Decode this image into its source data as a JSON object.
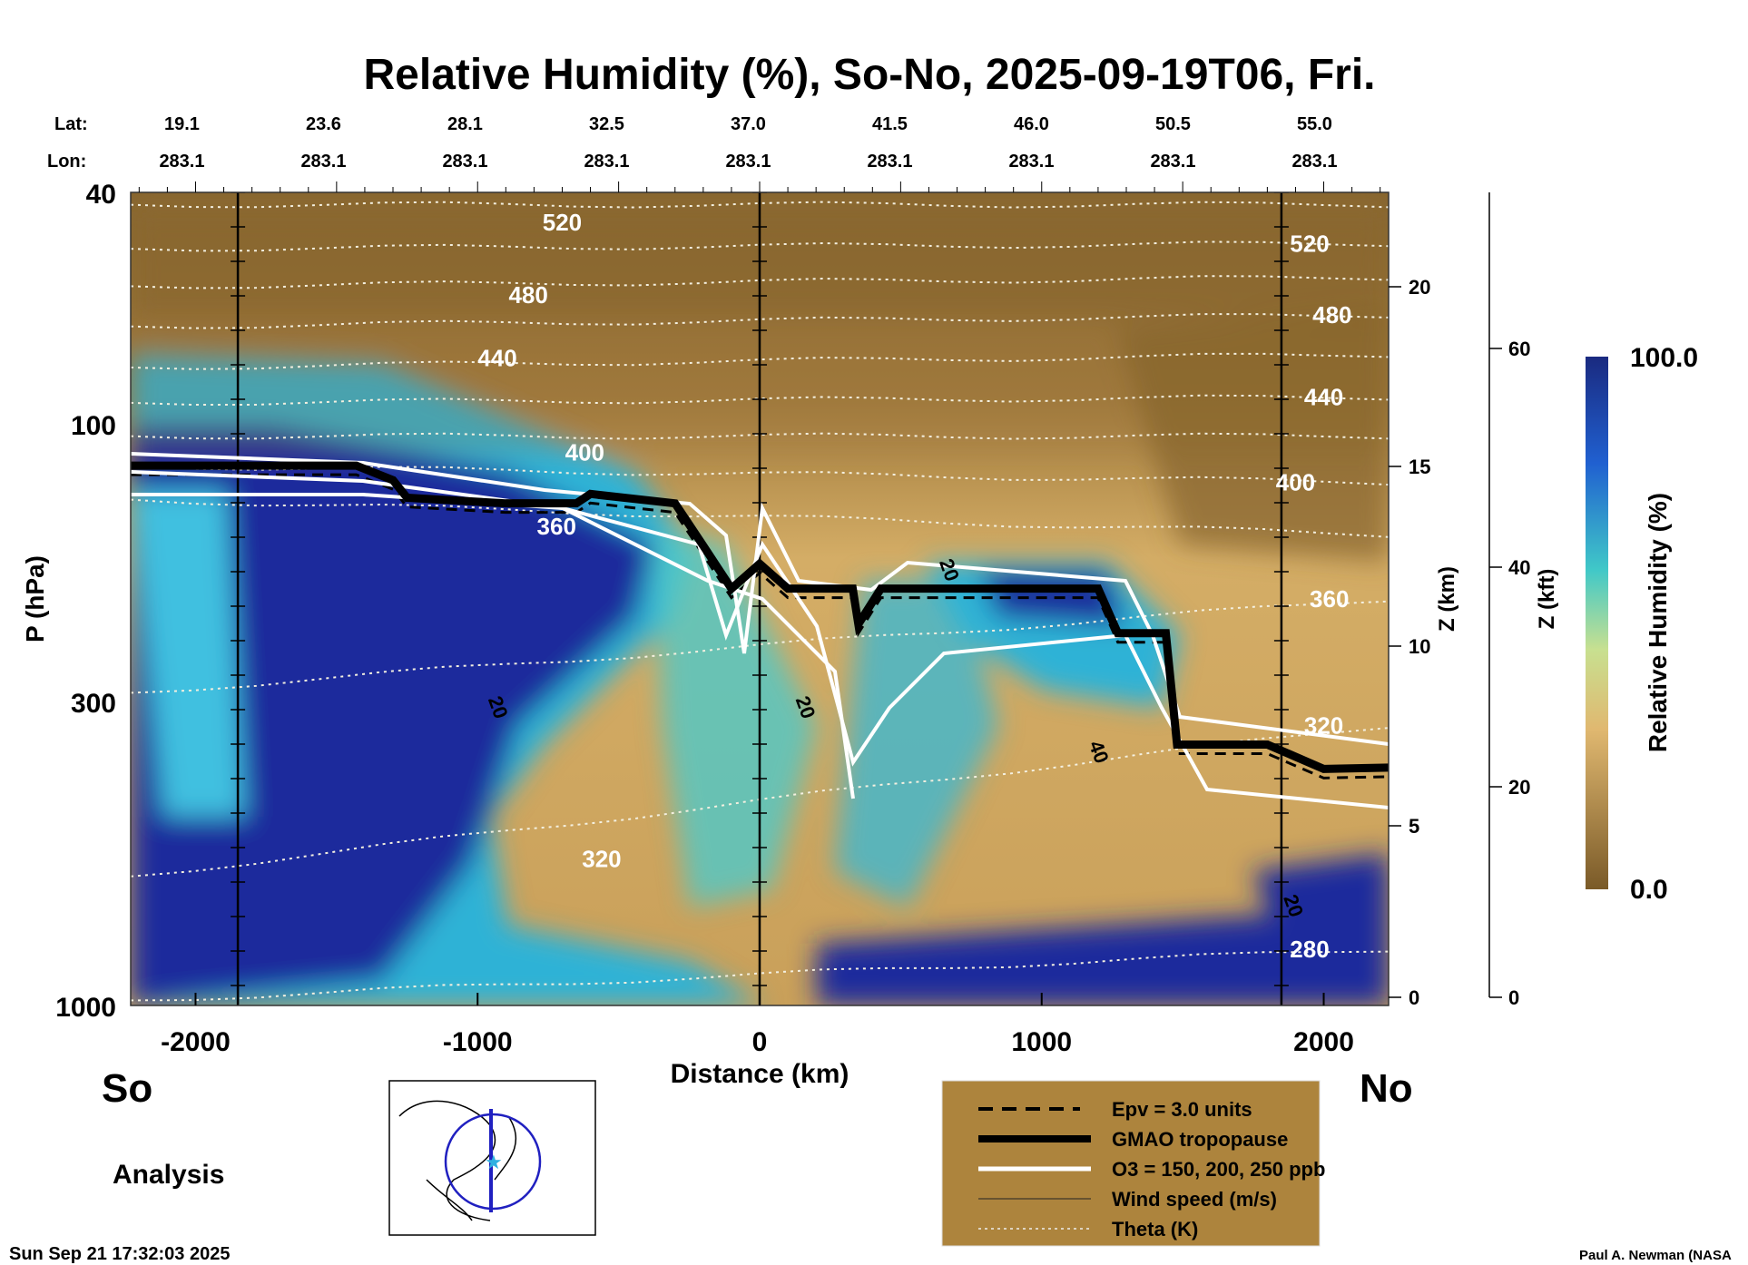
{
  "chart_data": {
    "type": "heatmap",
    "title": "Relative Humidity (%), So-No, 2025-09-19T06, Fri.",
    "xlabel": "Distance (km)",
    "ylabel": "P (hPa)",
    "xlim": [
      -2230,
      2230
    ],
    "ylim": [
      1000,
      40
    ],
    "yscale": "log",
    "x_ticks": [
      -2000,
      -1000,
      0,
      1000,
      2000
    ],
    "x_tick_labels": [
      "-2000",
      "-1000",
      "0",
      "1000",
      "2000"
    ],
    "y_ticks": [
      40,
      100,
      300,
      1000
    ],
    "y_tick_labels": [
      "40",
      "100",
      "300",
      "1000"
    ],
    "lat_label": "Lat:",
    "lon_label": "Lon:",
    "lat_values": [
      "19.1",
      "23.6",
      "28.1",
      "32.5",
      "37.0",
      "41.5",
      "46.0",
      "50.5",
      "55.0"
    ],
    "lon_values": [
      "283.1",
      "283.1",
      "283.1",
      "283.1",
      "283.1",
      "283.1",
      "283.1",
      "283.1",
      "283.1"
    ],
    "z_km_label": "Z (km)",
    "z_km_ticks": [
      "0",
      "5",
      "10",
      "15",
      "20"
    ],
    "z_kft_label": "Z (kft)",
    "z_kft_ticks": [
      "0",
      "20",
      "40",
      "60"
    ],
    "colorbar": {
      "label": "Relative Humidity (%)",
      "min_label": "0.0",
      "max_label": "100.0",
      "min": 0,
      "max": 100
    },
    "vertical_markers_km": [
      -1850,
      0,
      1850
    ],
    "tropopause": {
      "x": [
        -2230,
        -1430,
        -1300,
        -1250,
        -900,
        -650,
        -600,
        -300,
        -200,
        -100,
        0,
        100,
        330,
        350,
        430,
        1200,
        1270,
        1440,
        1480,
        1800,
        2000,
        2230
      ],
      "p": [
        118,
        118,
        125,
        134,
        137,
        137,
        132,
        137,
        162,
        192,
        174,
        192,
        192,
        221,
        192,
        192,
        229,
        229,
        356,
        356,
        392,
        390
      ]
    },
    "theta_labels": [
      {
        "text": "520",
        "x": -700,
        "p": 45
      },
      {
        "text": "480",
        "x": -820,
        "p": 60
      },
      {
        "text": "440",
        "x": -930,
        "p": 77
      },
      {
        "text": "400",
        "x": -620,
        "p": 112
      },
      {
        "text": "360",
        "x": -720,
        "p": 150
      },
      {
        "text": "320",
        "x": -560,
        "p": 560
      },
      {
        "text": "520",
        "x": 1950,
        "p": 49
      },
      {
        "text": "480",
        "x": 2030,
        "p": 65
      },
      {
        "text": "440",
        "x": 2000,
        "p": 90
      },
      {
        "text": "400",
        "x": 1900,
        "p": 126
      },
      {
        "text": "360",
        "x": 2020,
        "p": 200
      },
      {
        "text": "320",
        "x": 2000,
        "p": 330
      },
      {
        "text": "280",
        "x": 1950,
        "p": 800
      }
    ],
    "theta_levels_p_left": [
      42,
      50,
      58,
      68,
      80,
      92,
      105,
      118,
      135,
      290,
      600,
      980
    ],
    "theta_levels_p_right": [
      42,
      49,
      56,
      65,
      76,
      90,
      105,
      126,
      155,
      200,
      330,
      800
    ],
    "wind_labels": [
      {
        "text": "20",
        "x": -950,
        "p": 310
      },
      {
        "text": "20",
        "x": 140,
        "p": 310
      },
      {
        "text": "20",
        "x": 650,
        "p": 180
      },
      {
        "text": "40",
        "x": 1180,
        "p": 370
      },
      {
        "text": "20",
        "x": 1870,
        "p": 680
      }
    ],
    "legend": {
      "placement": "bottom-center",
      "entries": [
        "Epv = 3.0 units",
        "GMAO tropopause",
        "O3 = 150, 200, 250 ppb",
        "Wind speed (m/s)",
        "Theta (K)"
      ]
    }
  },
  "labels": {
    "south": "So",
    "north": "No",
    "analysis": "Analysis",
    "timestamp": "Sun Sep 21 17:32:03 2025",
    "credit": "Paul A. Newman (NASA"
  },
  "colors": {
    "brown": "#8a6830",
    "tan": "#d1a962",
    "blue": "#1c2a9c",
    "cyan": "#2fb2d6",
    "legend_bg": "#ad843d"
  }
}
